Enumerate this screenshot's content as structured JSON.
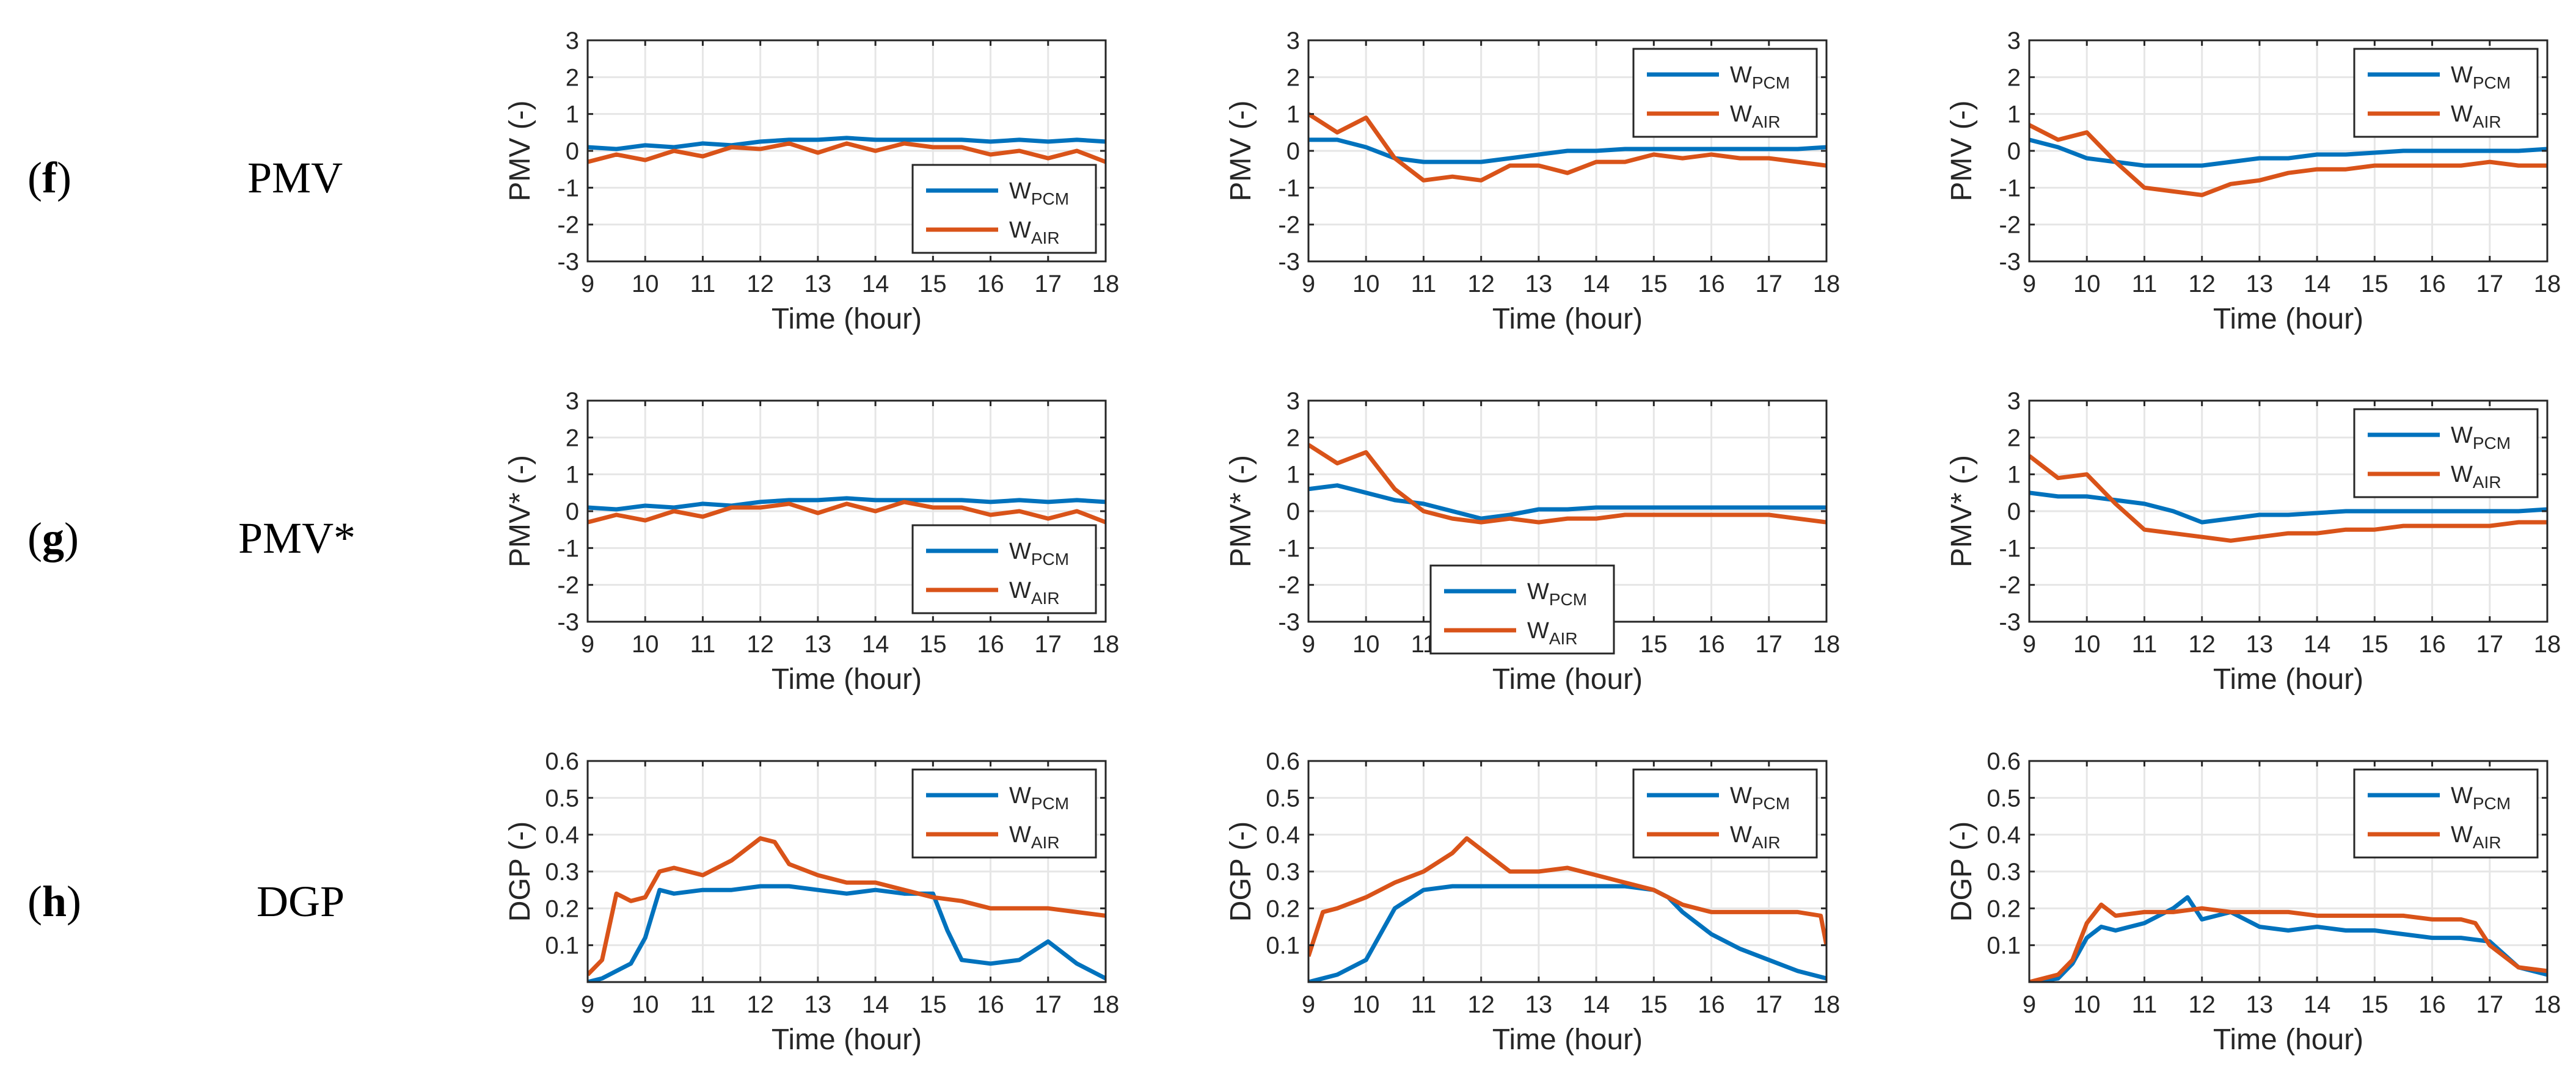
{
  "rows": [
    {
      "letter": "f",
      "name": "PMV"
    },
    {
      "letter": "g",
      "name": "PMV*"
    },
    {
      "letter": "h",
      "name": "DGP"
    }
  ],
  "colors": {
    "pcm": "#0072BD",
    "air": "#D95319",
    "grid": "#e6e6e6",
    "axis": "#262626"
  },
  "legend_labels": {
    "pcm": {
      "base": "W",
      "sub": "PCM"
    },
    "air": {
      "base": "W",
      "sub": "AIR"
    }
  },
  "chart_data": [
    {
      "type": "line",
      "row": 0,
      "col": 0,
      "ylabel": "PMV (-)",
      "xlabel": "Time (hour)",
      "xlim": [
        9,
        18
      ],
      "ylim": [
        -3,
        3
      ],
      "xticks": [
        9,
        10,
        11,
        12,
        13,
        14,
        15,
        16,
        17,
        18
      ],
      "yticks": [
        -3,
        -2,
        -1,
        0,
        1,
        2,
        3
      ],
      "grid": true,
      "legend_position": "lower-right",
      "series": [
        {
          "key": "pcm",
          "x": [
            9,
            9.5,
            10,
            10.5,
            11,
            11.5,
            12,
            12.5,
            13,
            13.5,
            14,
            14.5,
            15,
            15.5,
            16,
            16.5,
            17,
            17.5,
            18
          ],
          "y": [
            0.1,
            0.05,
            0.15,
            0.1,
            0.2,
            0.15,
            0.25,
            0.3,
            0.3,
            0.35,
            0.3,
            0.3,
            0.3,
            0.3,
            0.25,
            0.3,
            0.25,
            0.3,
            0.25
          ]
        },
        {
          "key": "air",
          "x": [
            9,
            9.5,
            10,
            10.5,
            11,
            11.5,
            12,
            12.5,
            13,
            13.5,
            14,
            14.5,
            15,
            15.5,
            16,
            16.5,
            17,
            17.5,
            18
          ],
          "y": [
            -0.3,
            -0.1,
            -0.25,
            0.0,
            -0.15,
            0.1,
            0.05,
            0.2,
            -0.05,
            0.2,
            0.0,
            0.2,
            0.1,
            0.1,
            -0.1,
            0.0,
            -0.2,
            0.0,
            -0.3
          ]
        }
      ]
    },
    {
      "type": "line",
      "row": 0,
      "col": 1,
      "ylabel": "PMV (-)",
      "xlabel": "Time (hour)",
      "xlim": [
        9,
        18
      ],
      "ylim": [
        -3,
        3
      ],
      "xticks": [
        9,
        10,
        11,
        12,
        13,
        14,
        15,
        16,
        17,
        18
      ],
      "yticks": [
        -3,
        -2,
        -1,
        0,
        1,
        2,
        3
      ],
      "grid": true,
      "legend_position": "top-right",
      "series": [
        {
          "key": "pcm",
          "x": [
            9,
            9.5,
            10,
            10.5,
            11,
            11.5,
            12,
            12.5,
            13,
            13.5,
            14,
            14.5,
            15,
            15.5,
            16,
            16.5,
            17,
            17.5,
            18
          ],
          "y": [
            0.3,
            0.3,
            0.1,
            -0.2,
            -0.3,
            -0.3,
            -0.3,
            -0.2,
            -0.1,
            0.0,
            0.0,
            0.05,
            0.05,
            0.05,
            0.05,
            0.05,
            0.05,
            0.05,
            0.1
          ]
        },
        {
          "key": "air",
          "x": [
            9,
            9.5,
            10,
            10.5,
            11,
            11.5,
            12,
            12.5,
            13,
            13.5,
            14,
            14.5,
            15,
            15.5,
            16,
            16.5,
            17,
            17.5,
            18
          ],
          "y": [
            1.0,
            0.5,
            0.9,
            -0.2,
            -0.8,
            -0.7,
            -0.8,
            -0.4,
            -0.4,
            -0.6,
            -0.3,
            -0.3,
            -0.1,
            -0.2,
            -0.1,
            -0.2,
            -0.2,
            -0.3,
            -0.4
          ]
        }
      ]
    },
    {
      "type": "line",
      "row": 0,
      "col": 2,
      "ylabel": "PMV (-)",
      "xlabel": "Time (hour)",
      "xlim": [
        9,
        18
      ],
      "ylim": [
        -3,
        3
      ],
      "xticks": [
        9,
        10,
        11,
        12,
        13,
        14,
        15,
        16,
        17,
        18
      ],
      "yticks": [
        -3,
        -2,
        -1,
        0,
        1,
        2,
        3
      ],
      "grid": true,
      "legend_position": "top-right",
      "series": [
        {
          "key": "pcm",
          "x": [
            9,
            9.5,
            10,
            10.5,
            11,
            11.5,
            12,
            12.5,
            13,
            13.5,
            14,
            14.5,
            15,
            15.5,
            16,
            16.5,
            17,
            17.5,
            18
          ],
          "y": [
            0.3,
            0.1,
            -0.2,
            -0.3,
            -0.4,
            -0.4,
            -0.4,
            -0.3,
            -0.2,
            -0.2,
            -0.1,
            -0.1,
            -0.05,
            0.0,
            0.0,
            0.0,
            0.0,
            0.0,
            0.05
          ]
        },
        {
          "key": "air",
          "x": [
            9,
            9.5,
            10,
            10.5,
            11,
            11.5,
            12,
            12.5,
            13,
            13.5,
            14,
            14.5,
            15,
            15.5,
            16,
            16.5,
            17,
            17.5,
            18
          ],
          "y": [
            0.7,
            0.3,
            0.5,
            -0.3,
            -1.0,
            -1.1,
            -1.2,
            -0.9,
            -0.8,
            -0.6,
            -0.5,
            -0.5,
            -0.4,
            -0.4,
            -0.4,
            -0.4,
            -0.3,
            -0.4,
            -0.4
          ]
        }
      ]
    },
    {
      "type": "line",
      "row": 1,
      "col": 0,
      "ylabel": "PMV* (-)",
      "xlabel": "Time (hour)",
      "xlim": [
        9,
        18
      ],
      "ylim": [
        -3,
        3
      ],
      "xticks": [
        9,
        10,
        11,
        12,
        13,
        14,
        15,
        16,
        17,
        18
      ],
      "yticks": [
        -3,
        -2,
        -1,
        0,
        1,
        2,
        3
      ],
      "grid": true,
      "legend_position": "lower-right",
      "series": [
        {
          "key": "pcm",
          "x": [
            9,
            9.5,
            10,
            10.5,
            11,
            11.5,
            12,
            12.5,
            13,
            13.5,
            14,
            14.5,
            15,
            15.5,
            16,
            16.5,
            17,
            17.5,
            18
          ],
          "y": [
            0.1,
            0.05,
            0.15,
            0.1,
            0.2,
            0.15,
            0.25,
            0.3,
            0.3,
            0.35,
            0.3,
            0.3,
            0.3,
            0.3,
            0.25,
            0.3,
            0.25,
            0.3,
            0.25
          ]
        },
        {
          "key": "air",
          "x": [
            9,
            9.5,
            10,
            10.5,
            11,
            11.5,
            12,
            12.5,
            13,
            13.5,
            14,
            14.5,
            15,
            15.5,
            16,
            16.5,
            17,
            17.5,
            18
          ],
          "y": [
            -0.3,
            -0.1,
            -0.25,
            0.0,
            -0.15,
            0.1,
            0.1,
            0.2,
            -0.05,
            0.2,
            0.0,
            0.25,
            0.1,
            0.1,
            -0.1,
            0.0,
            -0.2,
            0.0,
            -0.3
          ]
        }
      ]
    },
    {
      "type": "line",
      "row": 1,
      "col": 1,
      "ylabel": "PMV* (-)",
      "xlabel": "Time (hour)",
      "xlim": [
        9,
        18
      ],
      "ylim": [
        -3,
        3
      ],
      "xticks": [
        9,
        10,
        11,
        12,
        13,
        14,
        15,
        16,
        17,
        18
      ],
      "yticks": [
        -3,
        -2,
        -1,
        0,
        1,
        2,
        3
      ],
      "grid": true,
      "legend_position": "lower-left",
      "series": [
        {
          "key": "pcm",
          "x": [
            9,
            9.5,
            10,
            10.5,
            11,
            11.5,
            12,
            12.5,
            13,
            13.5,
            14,
            14.5,
            15,
            15.5,
            16,
            16.5,
            17,
            17.5,
            18
          ],
          "y": [
            0.6,
            0.7,
            0.5,
            0.3,
            0.2,
            0.0,
            -0.2,
            -0.1,
            0.05,
            0.05,
            0.1,
            0.1,
            0.1,
            0.1,
            0.1,
            0.1,
            0.1,
            0.1,
            0.1
          ]
        },
        {
          "key": "air",
          "x": [
            9,
            9.5,
            10,
            10.5,
            11,
            11.5,
            12,
            12.5,
            13,
            13.5,
            14,
            14.5,
            15,
            15.5,
            16,
            16.5,
            17,
            17.5,
            18
          ],
          "y": [
            1.8,
            1.3,
            1.6,
            0.6,
            0.0,
            -0.2,
            -0.3,
            -0.2,
            -0.3,
            -0.2,
            -0.2,
            -0.1,
            -0.1,
            -0.1,
            -0.1,
            -0.1,
            -0.1,
            -0.2,
            -0.3
          ]
        }
      ]
    },
    {
      "type": "line",
      "row": 1,
      "col": 2,
      "ylabel": "PMV* (-)",
      "xlabel": "Time (hour)",
      "xlim": [
        9,
        18
      ],
      "ylim": [
        -3,
        3
      ],
      "xticks": [
        9,
        10,
        11,
        12,
        13,
        14,
        15,
        16,
        17,
        18
      ],
      "yticks": [
        -3,
        -2,
        -1,
        0,
        1,
        2,
        3
      ],
      "grid": true,
      "legend_position": "top-right",
      "series": [
        {
          "key": "pcm",
          "x": [
            9,
            9.5,
            10,
            10.5,
            11,
            11.5,
            12,
            12.5,
            13,
            13.5,
            14,
            14.5,
            15,
            15.5,
            16,
            16.5,
            17,
            17.5,
            18
          ],
          "y": [
            0.5,
            0.4,
            0.4,
            0.3,
            0.2,
            0.0,
            -0.3,
            -0.2,
            -0.1,
            -0.1,
            -0.05,
            0.0,
            0.0,
            0.0,
            0.0,
            0.0,
            0.0,
            0.0,
            0.05
          ]
        },
        {
          "key": "air",
          "x": [
            9,
            9.5,
            10,
            10.5,
            11,
            11.5,
            12,
            12.5,
            13,
            13.5,
            14,
            14.5,
            15,
            15.5,
            16,
            16.5,
            17,
            17.5,
            18
          ],
          "y": [
            1.5,
            0.9,
            1.0,
            0.2,
            -0.5,
            -0.6,
            -0.7,
            -0.8,
            -0.7,
            -0.6,
            -0.6,
            -0.5,
            -0.5,
            -0.4,
            -0.4,
            -0.4,
            -0.4,
            -0.3,
            -0.3
          ]
        }
      ]
    },
    {
      "type": "line",
      "row": 2,
      "col": 0,
      "ylabel": "DGP (-)",
      "xlabel": "Time (hour)",
      "xlim": [
        9,
        18
      ],
      "ylim": [
        0,
        0.6
      ],
      "xticks": [
        9,
        10,
        11,
        12,
        13,
        14,
        15,
        16,
        17,
        18
      ],
      "yticks": [
        0.1,
        0.2,
        0.3,
        0.4,
        0.5,
        0.6
      ],
      "grid": true,
      "legend_position": "top-right",
      "series": [
        {
          "key": "pcm",
          "x": [
            9,
            9.25,
            9.5,
            9.75,
            10,
            10.25,
            10.5,
            11,
            11.5,
            12,
            12.5,
            13,
            13.5,
            14,
            14.5,
            15,
            15.25,
            15.5,
            16,
            16.5,
            17,
            17.5,
            18
          ],
          "y": [
            0.0,
            0.01,
            0.03,
            0.05,
            0.12,
            0.25,
            0.24,
            0.25,
            0.25,
            0.26,
            0.26,
            0.25,
            0.24,
            0.25,
            0.24,
            0.24,
            0.14,
            0.06,
            0.05,
            0.06,
            0.11,
            0.05,
            0.01
          ]
        },
        {
          "key": "air",
          "x": [
            9,
            9.25,
            9.5,
            9.75,
            10,
            10.25,
            10.5,
            11,
            11.5,
            12,
            12.25,
            12.5,
            13,
            13.5,
            14,
            14.5,
            15,
            15.5,
            16,
            16.5,
            17,
            17.5,
            18
          ],
          "y": [
            0.02,
            0.06,
            0.24,
            0.22,
            0.23,
            0.3,
            0.31,
            0.29,
            0.33,
            0.39,
            0.38,
            0.32,
            0.29,
            0.27,
            0.27,
            0.25,
            0.23,
            0.22,
            0.2,
            0.2,
            0.2,
            0.19,
            0.18
          ]
        }
      ]
    },
    {
      "type": "line",
      "row": 2,
      "col": 1,
      "ylabel": "DGP (-)",
      "xlabel": "Time (hour)",
      "xlim": [
        9,
        18
      ],
      "ylim": [
        0,
        0.6
      ],
      "xticks": [
        9,
        10,
        11,
        12,
        13,
        14,
        15,
        16,
        17,
        18
      ],
      "yticks": [
        0.1,
        0.2,
        0.3,
        0.4,
        0.5,
        0.6
      ],
      "grid": true,
      "legend_position": "top-right",
      "series": [
        {
          "key": "pcm",
          "x": [
            9,
            9.5,
            10,
            10.5,
            11,
            11.5,
            12,
            12.5,
            13,
            13.5,
            14,
            14.5,
            15,
            15.25,
            15.5,
            16,
            16.5,
            17,
            17.5,
            18
          ],
          "y": [
            0.0,
            0.02,
            0.06,
            0.2,
            0.25,
            0.26,
            0.26,
            0.26,
            0.26,
            0.26,
            0.26,
            0.26,
            0.25,
            0.23,
            0.19,
            0.13,
            0.09,
            0.06,
            0.03,
            0.01
          ]
        },
        {
          "key": "air",
          "x": [
            9,
            9.25,
            9.5,
            10,
            10.5,
            11,
            11.5,
            11.75,
            12,
            12.5,
            13,
            13.5,
            14,
            14.5,
            15,
            15.5,
            16,
            16.5,
            17,
            17.5,
            17.9,
            18
          ],
          "y": [
            0.07,
            0.19,
            0.2,
            0.23,
            0.27,
            0.3,
            0.35,
            0.39,
            0.36,
            0.3,
            0.3,
            0.31,
            0.29,
            0.27,
            0.25,
            0.21,
            0.19,
            0.19,
            0.19,
            0.19,
            0.18,
            0.1
          ]
        }
      ]
    },
    {
      "type": "line",
      "row": 2,
      "col": 2,
      "ylabel": "DGP (-)",
      "xlabel": "Time (hour)",
      "xlim": [
        9,
        18
      ],
      "ylim": [
        0,
        0.6
      ],
      "xticks": [
        9,
        10,
        11,
        12,
        13,
        14,
        15,
        16,
        17,
        18
      ],
      "yticks": [
        0.1,
        0.2,
        0.3,
        0.4,
        0.5,
        0.6
      ],
      "grid": true,
      "legend_position": "top-right",
      "series": [
        {
          "key": "pcm",
          "x": [
            9,
            9.5,
            9.75,
            10,
            10.25,
            10.5,
            11,
            11.5,
            11.75,
            12,
            12.5,
            13,
            13.5,
            14,
            14.5,
            15,
            15.5,
            16,
            16.5,
            17,
            17.5,
            18
          ],
          "y": [
            0.0,
            0.01,
            0.05,
            0.12,
            0.15,
            0.14,
            0.16,
            0.2,
            0.23,
            0.17,
            0.19,
            0.15,
            0.14,
            0.15,
            0.14,
            0.14,
            0.13,
            0.12,
            0.12,
            0.11,
            0.04,
            0.02
          ]
        },
        {
          "key": "air",
          "x": [
            9,
            9.5,
            9.75,
            10,
            10.25,
            10.5,
            11,
            11.5,
            12,
            12.5,
            13,
            13.5,
            14,
            14.5,
            15,
            15.5,
            16,
            16.5,
            16.75,
            17,
            17.5,
            18
          ],
          "y": [
            0.0,
            0.02,
            0.06,
            0.16,
            0.21,
            0.18,
            0.19,
            0.19,
            0.2,
            0.19,
            0.19,
            0.19,
            0.18,
            0.18,
            0.18,
            0.18,
            0.17,
            0.17,
            0.16,
            0.1,
            0.04,
            0.03
          ]
        }
      ]
    }
  ]
}
